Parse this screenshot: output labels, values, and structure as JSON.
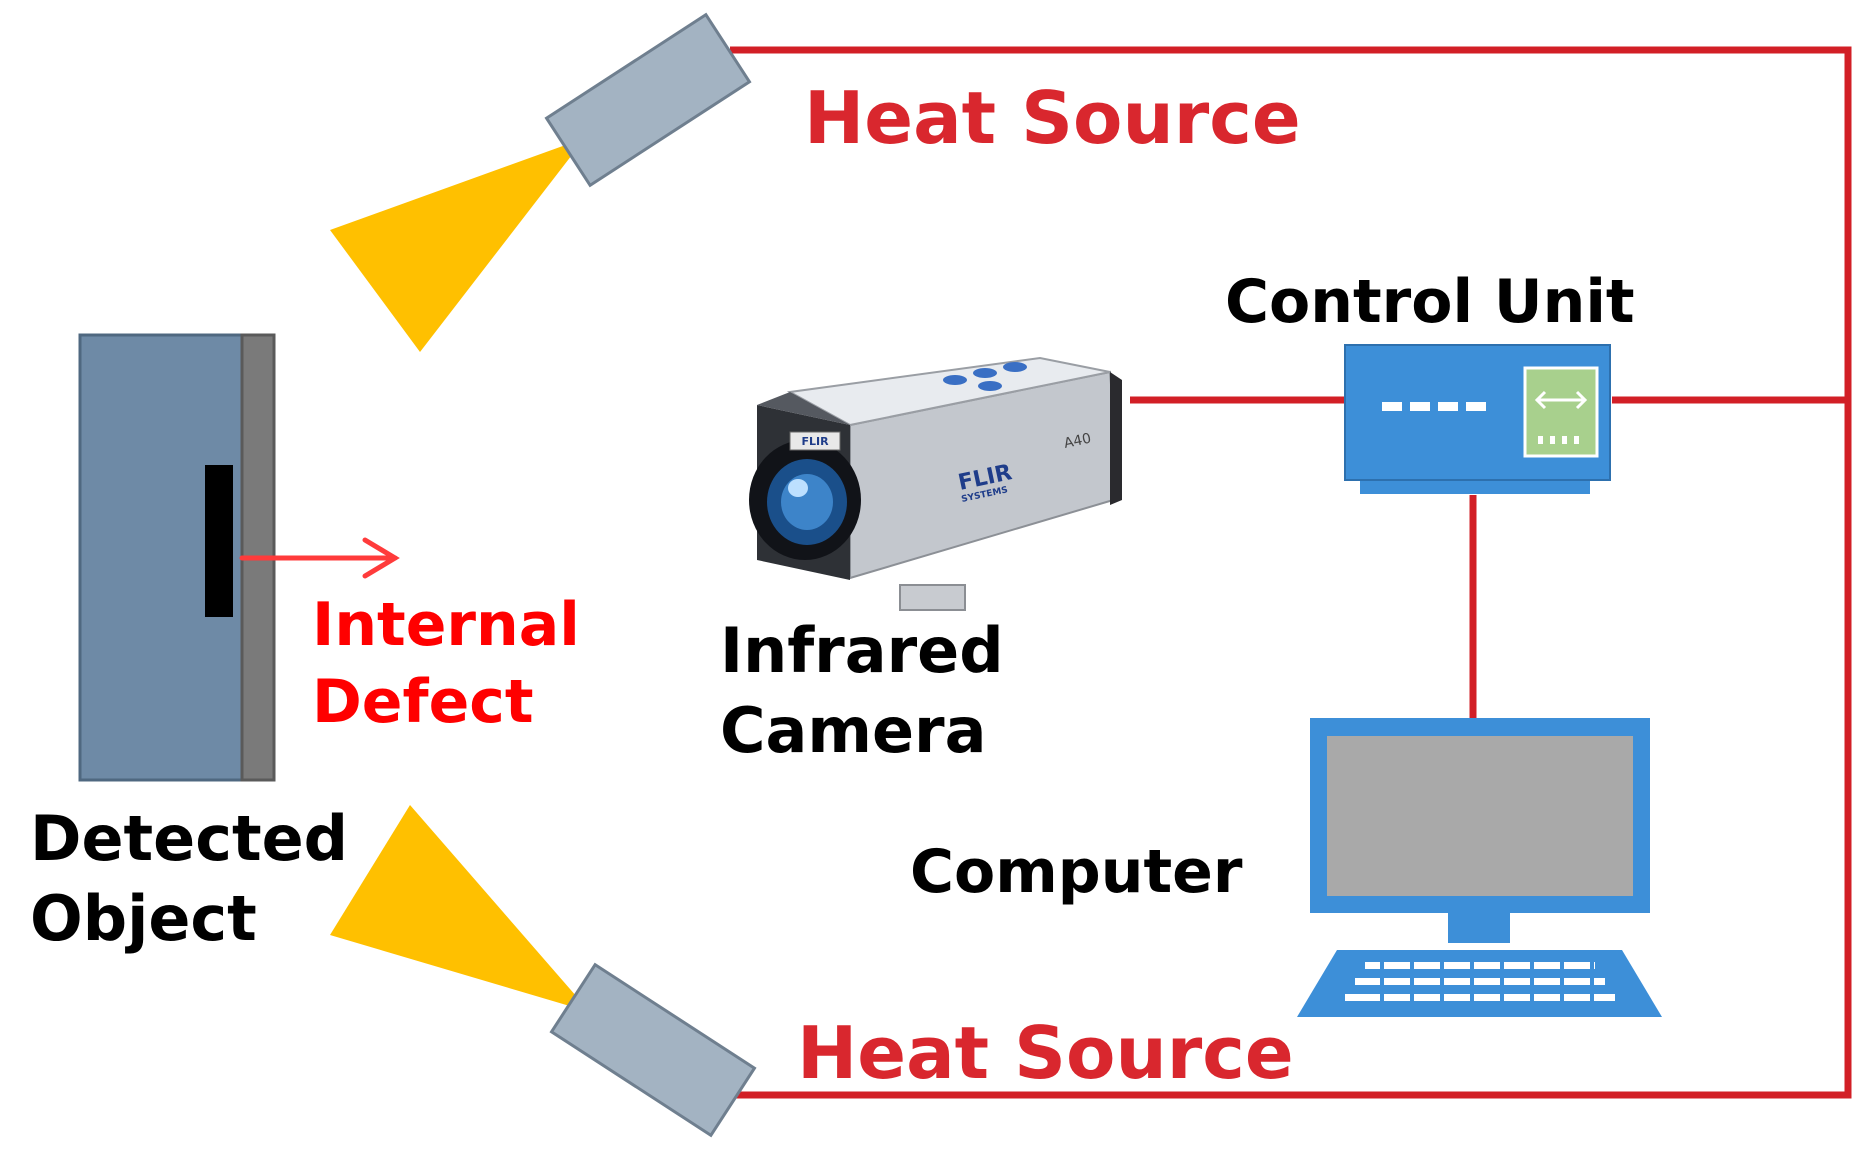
{
  "labels": {
    "heat_source_top": "Heat Source",
    "heat_source_bottom": "Heat Source",
    "control_unit": "Control Unit",
    "internal_defect_line1": "Internal",
    "internal_defect_line2": "Defect",
    "infrared_camera_line1": "Infrared",
    "infrared_camera_line2": "Camera",
    "detected_object_line1": "Detected",
    "detected_object_line2": "Object",
    "computer": "Computer",
    "camera_brand": "FLIR",
    "camera_brand_sub": "SYSTEMS",
    "camera_model": "A40",
    "camera_badge": "FLIR"
  },
  "colors": {
    "wire": "#d21f26",
    "heat_beam": "#ffc000",
    "heat_source_body": "#a3b3c2",
    "object_body": "#6e8aa6",
    "object_edge": "#7a7a7a",
    "defect": "#000000",
    "device_blue": "#3d8fd8",
    "screen_grey": "#a9a9a9",
    "label_red": "#d9272e"
  },
  "icons": {
    "heat_source": "heat-lamp-icon",
    "control_unit": "network-switch-icon",
    "computer": "desktop-computer-icon",
    "camera": "infrared-camera-icon"
  }
}
